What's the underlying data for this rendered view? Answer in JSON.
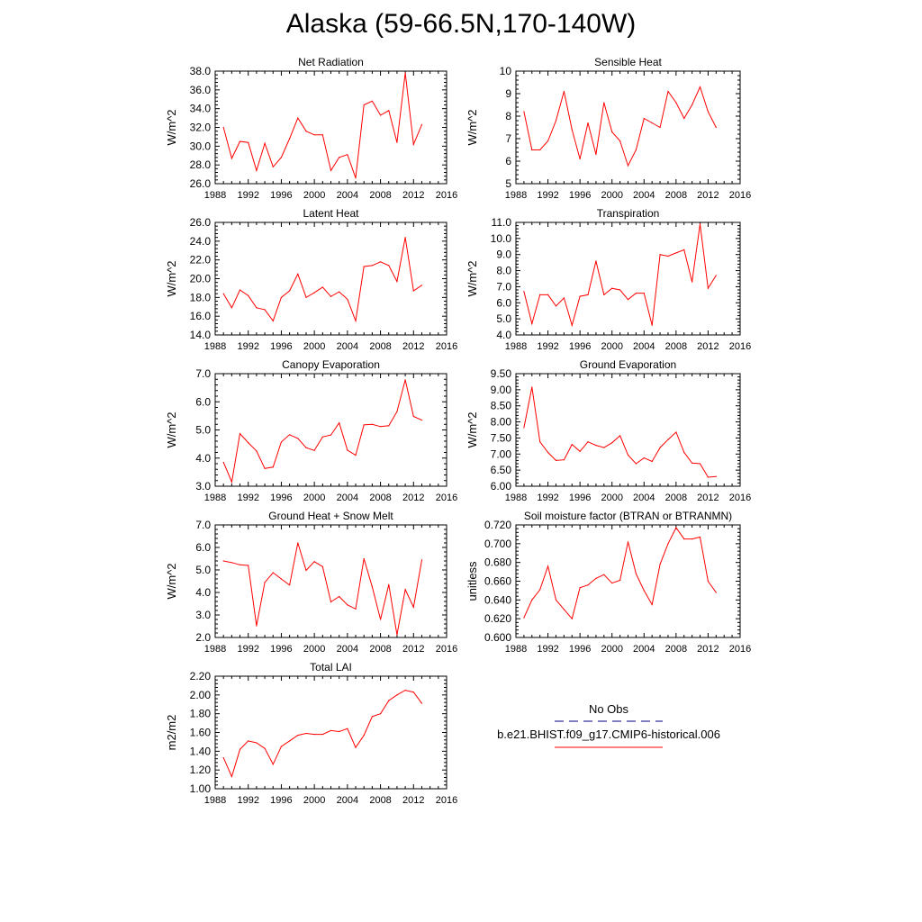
{
  "page": {
    "title": "Alaska (59-66.5N,170-140W)"
  },
  "legend": {
    "items": [
      {
        "label": "No Obs",
        "color": "#000080",
        "style": "dashed"
      },
      {
        "label": "b.e21.BHIST.f09_g17.CMIP6-historical.006",
        "color": "#ff0000",
        "style": "solid"
      }
    ]
  },
  "chart_data": [
    {
      "type": "line",
      "title": "Net Radiation",
      "ylabel": "W/m^2",
      "xlim": [
        1988,
        2016
      ],
      "ylim": [
        26.0,
        38.0
      ],
      "xticks": [
        "1988",
        "1992",
        "1996",
        "2000",
        "2004",
        "2008",
        "2012",
        "2016"
      ],
      "yticks": [
        "26.0",
        "28.0",
        "30.0",
        "32.0",
        "34.0",
        "36.0",
        "38.0"
      ],
      "series": [
        {
          "color": "#ff0000",
          "x": [
            1989,
            1990,
            1991,
            1992,
            1993,
            1994,
            1995,
            1996,
            1997,
            1998,
            1999,
            2000,
            2001,
            2002,
            2003,
            2004,
            2005,
            2006,
            2007,
            2008,
            2009,
            2010,
            2011,
            2012,
            2013
          ],
          "values": [
            32.0,
            28.7,
            30.5,
            30.4,
            27.4,
            30.3,
            27.8,
            28.8,
            30.8,
            33.0,
            31.6,
            31.2,
            31.2,
            27.4,
            28.8,
            29.1,
            26.6,
            34.4,
            34.8,
            33.3,
            33.8,
            30.4,
            37.8,
            30.2,
            32.3
          ]
        }
      ]
    },
    {
      "type": "line",
      "title": "Sensible Heat",
      "ylabel": "W/m^2",
      "xlim": [
        1988,
        2016
      ],
      "ylim": [
        5,
        10
      ],
      "xticks": [
        "1988",
        "1992",
        "1996",
        "2000",
        "2004",
        "2008",
        "2012",
        "2016"
      ],
      "yticks": [
        "5",
        "6",
        "7",
        "8",
        "9",
        "10"
      ],
      "series": [
        {
          "color": "#ff0000",
          "x": [
            1989,
            1990,
            1991,
            1992,
            1993,
            1994,
            1995,
            1996,
            1997,
            1998,
            1999,
            2000,
            2001,
            2002,
            2003,
            2004,
            2005,
            2006,
            2007,
            2008,
            2009,
            2010,
            2011,
            2012,
            2013
          ],
          "values": [
            8.2,
            6.5,
            6.5,
            6.9,
            7.8,
            9.1,
            7.4,
            6.1,
            7.7,
            6.3,
            8.6,
            7.3,
            6.9,
            5.8,
            6.5,
            7.9,
            7.7,
            7.5,
            9.1,
            8.6,
            7.9,
            8.5,
            9.3,
            8.2,
            7.5
          ]
        }
      ]
    },
    {
      "type": "line",
      "title": "Latent Heat",
      "ylabel": "W/m^2",
      "xlim": [
        1988,
        2016
      ],
      "ylim": [
        14.0,
        26.0
      ],
      "xticks": [
        "1988",
        "1992",
        "1996",
        "2000",
        "2004",
        "2008",
        "2012",
        "2016"
      ],
      "yticks": [
        "14.0",
        "16.0",
        "18.0",
        "20.0",
        "22.0",
        "24.0",
        "26.0"
      ],
      "series": [
        {
          "color": "#ff0000",
          "x": [
            1989,
            1990,
            1991,
            1992,
            1993,
            1994,
            1995,
            1996,
            1997,
            1998,
            1999,
            2000,
            2001,
            2002,
            2003,
            2004,
            2005,
            2006,
            2007,
            2008,
            2009,
            2010,
            2011,
            2012,
            2013
          ],
          "values": [
            18.4,
            16.9,
            18.8,
            18.2,
            16.9,
            16.7,
            15.5,
            18.0,
            18.7,
            20.5,
            18.0,
            18.5,
            19.1,
            18.1,
            18.6,
            17.8,
            15.5,
            21.3,
            21.4,
            21.8,
            21.4,
            19.7,
            24.4,
            18.7,
            19.3
          ]
        }
      ]
    },
    {
      "type": "line",
      "title": "Transpiration",
      "ylabel": "W/m^2",
      "xlim": [
        1988,
        2016
      ],
      "ylim": [
        4.0,
        11.0
      ],
      "xticks": [
        "1988",
        "1992",
        "1996",
        "2000",
        "2004",
        "2008",
        "2012",
        "2016"
      ],
      "yticks": [
        "4.0",
        "5.0",
        "6.0",
        "7.0",
        "8.0",
        "9.0",
        "10.0",
        "11.0"
      ],
      "series": [
        {
          "color": "#ff0000",
          "x": [
            1989,
            1990,
            1991,
            1992,
            1993,
            1994,
            1995,
            1996,
            1997,
            1998,
            1999,
            2000,
            2001,
            2002,
            2003,
            2004,
            2005,
            2006,
            2007,
            2008,
            2009,
            2010,
            2011,
            2012,
            2013
          ],
          "values": [
            6.7,
            4.7,
            6.5,
            6.5,
            5.8,
            6.3,
            4.6,
            6.4,
            6.5,
            8.6,
            6.5,
            6.9,
            6.8,
            6.2,
            6.6,
            6.6,
            4.6,
            9.0,
            8.9,
            9.1,
            9.3,
            7.3,
            10.9,
            6.9,
            7.7
          ]
        }
      ]
    },
    {
      "type": "line",
      "title": "Canopy Evaporation",
      "ylabel": "W/m^2",
      "xlim": [
        1988,
        2016
      ],
      "ylim": [
        3.0,
        7.0
      ],
      "xticks": [
        "1988",
        "1992",
        "1996",
        "2000",
        "2004",
        "2008",
        "2012",
        "2016"
      ],
      "yticks": [
        "3.0",
        "4.0",
        "5.0",
        "6.0",
        "7.0"
      ],
      "series": [
        {
          "color": "#ff0000",
          "x": [
            1989,
            1990,
            1991,
            1992,
            1993,
            1994,
            1995,
            1996,
            1997,
            1998,
            1999,
            2000,
            2001,
            2002,
            2003,
            2004,
            2005,
            2006,
            2007,
            2008,
            2009,
            2010,
            2011,
            2012,
            2013
          ],
          "values": [
            3.85,
            3.15,
            4.87,
            4.55,
            4.25,
            3.63,
            3.68,
            4.57,
            4.83,
            4.7,
            4.37,
            4.27,
            4.75,
            4.82,
            5.25,
            4.28,
            4.1,
            5.18,
            5.2,
            5.12,
            5.15,
            5.65,
            6.78,
            5.48,
            5.35
          ]
        }
      ]
    },
    {
      "type": "line",
      "title": "Ground Evaporation",
      "ylabel": "W/m^2",
      "xlim": [
        1988,
        2016
      ],
      "ylim": [
        6.0,
        9.5
      ],
      "xticks": [
        "1988",
        "1992",
        "1996",
        "2000",
        "2004",
        "2008",
        "2012",
        "2016"
      ],
      "yticks": [
        "6.00",
        "6.50",
        "7.00",
        "7.50",
        "8.00",
        "8.50",
        "9.00",
        "9.50"
      ],
      "series": [
        {
          "color": "#ff0000",
          "x": [
            1989,
            1990,
            1991,
            1992,
            1993,
            1994,
            1995,
            1996,
            1997,
            1998,
            1999,
            2000,
            2001,
            2002,
            2003,
            2004,
            2005,
            2006,
            2007,
            2008,
            2009,
            2010,
            2011,
            2012,
            2013
          ],
          "values": [
            7.82,
            9.08,
            7.38,
            7.05,
            6.8,
            6.82,
            7.3,
            7.08,
            7.38,
            7.27,
            7.2,
            7.35,
            7.57,
            6.97,
            6.7,
            6.88,
            6.77,
            7.2,
            7.45,
            7.68,
            7.05,
            6.72,
            6.7,
            6.28,
            6.3
          ]
        }
      ]
    },
    {
      "type": "line",
      "title": "Ground Heat + Snow Melt",
      "ylabel": "W/m^2",
      "xlim": [
        1988,
        2016
      ],
      "ylim": [
        2.0,
        7.0
      ],
      "xticks": [
        "1988",
        "1992",
        "1996",
        "2000",
        "2004",
        "2008",
        "2012",
        "2016"
      ],
      "yticks": [
        "2.0",
        "3.0",
        "4.0",
        "5.0",
        "6.0",
        "7.0"
      ],
      "series": [
        {
          "color": "#ff0000",
          "x": [
            1989,
            1990,
            1991,
            1992,
            1993,
            1994,
            1995,
            1996,
            1997,
            1998,
            1999,
            2000,
            2001,
            2002,
            2003,
            2004,
            2005,
            2006,
            2007,
            2008,
            2009,
            2010,
            2011,
            2012,
            2013
          ],
          "values": [
            5.4,
            5.33,
            5.23,
            5.2,
            2.52,
            4.45,
            4.88,
            4.6,
            4.33,
            6.2,
            4.98,
            5.37,
            5.15,
            3.58,
            3.82,
            3.45,
            3.27,
            5.5,
            4.25,
            2.8,
            4.35,
            2.12,
            4.13,
            3.35,
            5.45
          ]
        }
      ]
    },
    {
      "type": "line",
      "title": "Soil moisture factor (BTRAN or BTRANMN)",
      "ylabel": "unitless",
      "xlim": [
        1988,
        2016
      ],
      "ylim": [
        0.6,
        0.72
      ],
      "xticks": [
        "1988",
        "1992",
        "1996",
        "2000",
        "2004",
        "2008",
        "2012",
        "2016"
      ],
      "yticks": [
        "0.600",
        "0.620",
        "0.640",
        "0.660",
        "0.680",
        "0.700",
        "0.720"
      ],
      "series": [
        {
          "color": "#ff0000",
          "x": [
            1989,
            1990,
            1991,
            1992,
            1993,
            1994,
            1995,
            1996,
            1997,
            1998,
            1999,
            2000,
            2001,
            2002,
            2003,
            2004,
            2005,
            2006,
            2007,
            2008,
            2009,
            2010,
            2011,
            2012,
            2013
          ],
          "values": [
            0.621,
            0.64,
            0.651,
            0.676,
            0.64,
            0.63,
            0.62,
            0.653,
            0.656,
            0.663,
            0.667,
            0.658,
            0.661,
            0.702,
            0.668,
            0.65,
            0.635,
            0.678,
            0.7,
            0.717,
            0.705,
            0.705,
            0.707,
            0.66,
            0.648
          ]
        }
      ]
    },
    {
      "type": "line",
      "title": "Total LAI",
      "ylabel": "m2/m2",
      "xlim": [
        1988,
        2016
      ],
      "ylim": [
        1.0,
        2.2
      ],
      "xticks": [
        "1988",
        "1992",
        "1996",
        "2000",
        "2004",
        "2008",
        "2012",
        "2016"
      ],
      "yticks": [
        "1.00",
        "1.20",
        "1.40",
        "1.60",
        "1.80",
        "2.00",
        "2.20"
      ],
      "series": [
        {
          "color": "#ff0000",
          "x": [
            1989,
            1990,
            1991,
            1992,
            1993,
            1994,
            1995,
            1996,
            1997,
            1998,
            1999,
            2000,
            2001,
            2002,
            2003,
            2004,
            2005,
            2006,
            2007,
            2008,
            2009,
            2010,
            2011,
            2012,
            2013
          ],
          "values": [
            1.33,
            1.13,
            1.42,
            1.51,
            1.49,
            1.43,
            1.26,
            1.45,
            1.51,
            1.57,
            1.59,
            1.58,
            1.58,
            1.62,
            1.61,
            1.64,
            1.44,
            1.57,
            1.77,
            1.8,
            1.94,
            2.0,
            2.05,
            2.03,
            1.91
          ]
        }
      ]
    }
  ]
}
